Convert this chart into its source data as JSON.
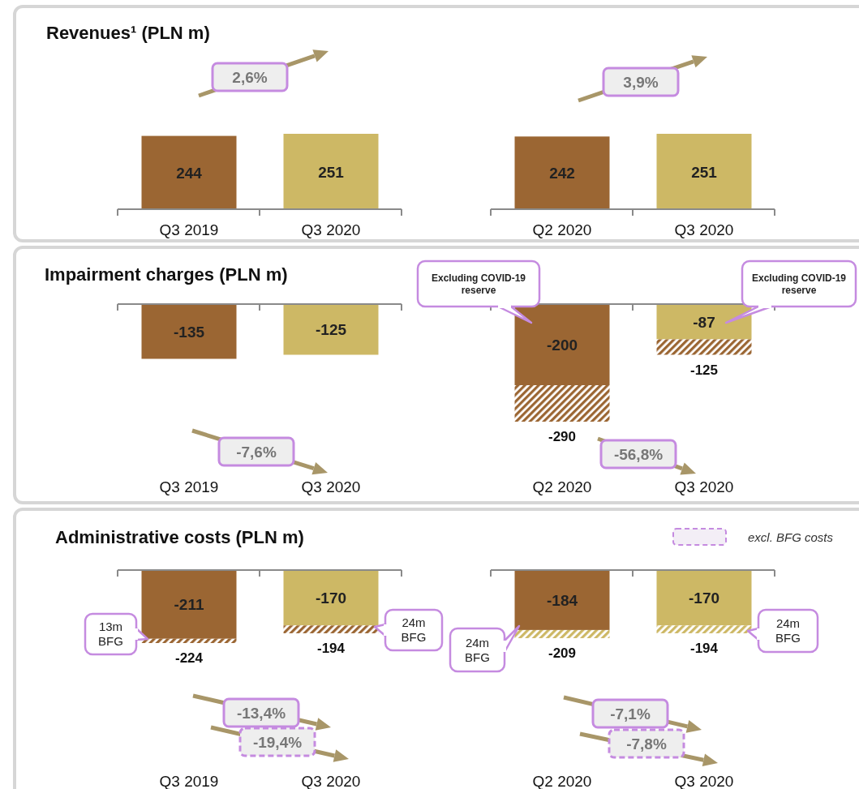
{
  "chart_data": [
    {
      "type": "bar",
      "title": "Revenues¹ (PLN m)",
      "categories": [
        "Q3 2019",
        "Q3 2020"
      ],
      "values": [
        244,
        251
      ],
      "colors": [
        "#9b6633",
        "#cdb865"
      ],
      "data_labels": true,
      "annotations": [
        "2,6%"
      ]
    },
    {
      "type": "bar",
      "categories": [
        "Q2 2020",
        "Q3 2020"
      ],
      "values": [
        242,
        251
      ],
      "colors": [
        "#9b6633",
        "#cdb865"
      ],
      "data_labels": true,
      "annotations": [
        "3,9%"
      ]
    },
    {
      "type": "bar",
      "title": "Impairment charges (PLN m)",
      "categories": [
        "Q3 2019",
        "Q3 2020"
      ],
      "values": [
        -135,
        -125
      ],
      "colors": [
        "#9b6633",
        "#cdb865"
      ],
      "data_labels": true,
      "annotations": [
        "-7,6%"
      ]
    },
    {
      "type": "bar",
      "categories": [
        "Q2 2020",
        "Q3 2020"
      ],
      "stacked": true,
      "series": [
        {
          "values": [
            -200,
            -87
          ],
          "colors": [
            "#9b6633",
            "#cdb865"
          ],
          "value_labels": [
            "-200",
            "-87"
          ]
        },
        {
          "values": [
            -90,
            -38
          ],
          "colors": [
            "#9b6633",
            "#9b6633"
          ]
        }
      ],
      "totals": [
        "-290",
        "-125"
      ],
      "annotations": [
        "-56,8%",
        "Excluding COVID-19 reserve",
        "Excluding COVID-19 reserve"
      ]
    },
    {
      "type": "bar",
      "title": "Administrative costs (PLN m)",
      "categories": [
        "Q3 2019",
        "Q3 2020"
      ],
      "stacked": true,
      "series": [
        {
          "values": [
            -211,
            -170
          ],
          "colors": [
            "#9b6633",
            "#cdb865"
          ],
          "value_labels": [
            "-211",
            "-170"
          ]
        },
        {
          "values": [
            -13,
            -24
          ],
          "colors": [
            "#9b6633",
            "#9b6633"
          ]
        }
      ],
      "totals": [
        "-224",
        "-194"
      ],
      "annotations": [
        "-13,4%",
        "-19,4%",
        "13m BFG",
        "24m BFG"
      ]
    },
    {
      "type": "bar",
      "categories": [
        "Q2 2020",
        "Q3 2020"
      ],
      "stacked": true,
      "series": [
        {
          "values": [
            -184,
            -170
          ],
          "colors": [
            "#9b6633",
            "#cdb865"
          ],
          "value_labels": [
            "-184",
            "-170"
          ]
        },
        {
          "values": [
            -25,
            -24
          ],
          "colors": [
            "#cdb865",
            "#cdb865"
          ]
        }
      ],
      "totals": [
        "-209",
        "-194"
      ],
      "annotations": [
        "-7,1%",
        "-7,8%",
        "24m BFG",
        "24m BFG",
        "excl. BFG costs"
      ]
    }
  ]
}
